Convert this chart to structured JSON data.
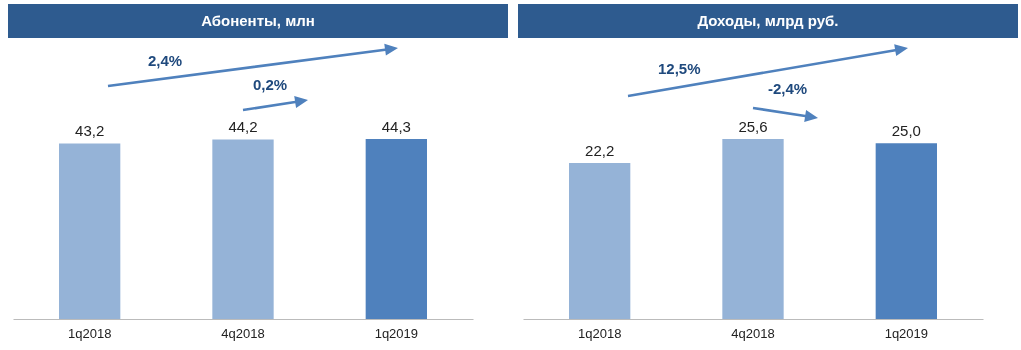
{
  "chart_data": [
    {
      "type": "bar",
      "title": "Абоненты, млн",
      "categories": [
        "1q2018",
        "4q2018",
        "1q2019"
      ],
      "values": [
        43.2,
        44.2,
        44.3
      ],
      "colors": [
        "#95b3d7",
        "#95b3d7",
        "#4f81bd"
      ],
      "value_labels": [
        "43,2",
        "44,2",
        "44,3"
      ],
      "annotations": [
        "2,4%",
        "0,2%"
      ]
    },
    {
      "type": "bar",
      "title": "Доходы, млрд руб.",
      "categories": [
        "1q2018",
        "4q2018",
        "1q2019"
      ],
      "values": [
        22.2,
        25.6,
        25.0
      ],
      "colors": [
        "#95b3d7",
        "#95b3d7",
        "#4f81bd"
      ],
      "value_labels": [
        "22,2",
        "25,6",
        "25,0"
      ],
      "annotations": [
        "12,5%",
        "-2,4%"
      ]
    }
  ]
}
